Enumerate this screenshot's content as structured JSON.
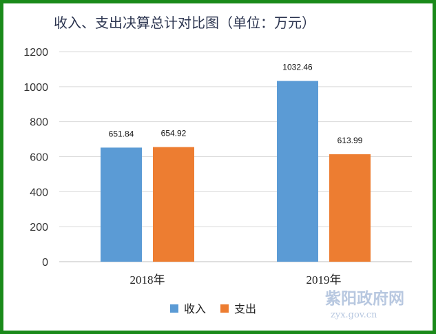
{
  "chart_data": {
    "type": "bar",
    "title": "收入、支出决算总计对比图（单位：万元）",
    "categories": [
      "2018年",
      "2019年"
    ],
    "series": [
      {
        "name": "收入",
        "values": [
          651.84,
          1032.46
        ],
        "labels": [
          "651.84",
          "1032.46"
        ],
        "color": "#5b9bd5"
      },
      {
        "name": "支出",
        "values": [
          654.92,
          613.99
        ],
        "labels": [
          "654.92",
          "613.99"
        ],
        "color": "#ed7d31"
      }
    ],
    "ylim": [
      0,
      1200
    ],
    "yticks": [
      "0",
      "200",
      "400",
      "600",
      "800",
      "1000",
      "1200"
    ],
    "grid": true,
    "legend_position": "bottom"
  },
  "watermark": {
    "logo_text": "紫阳政府网",
    "url": "zyx.gov.cn"
  },
  "colors": {
    "border": "#1a8a1a"
  }
}
